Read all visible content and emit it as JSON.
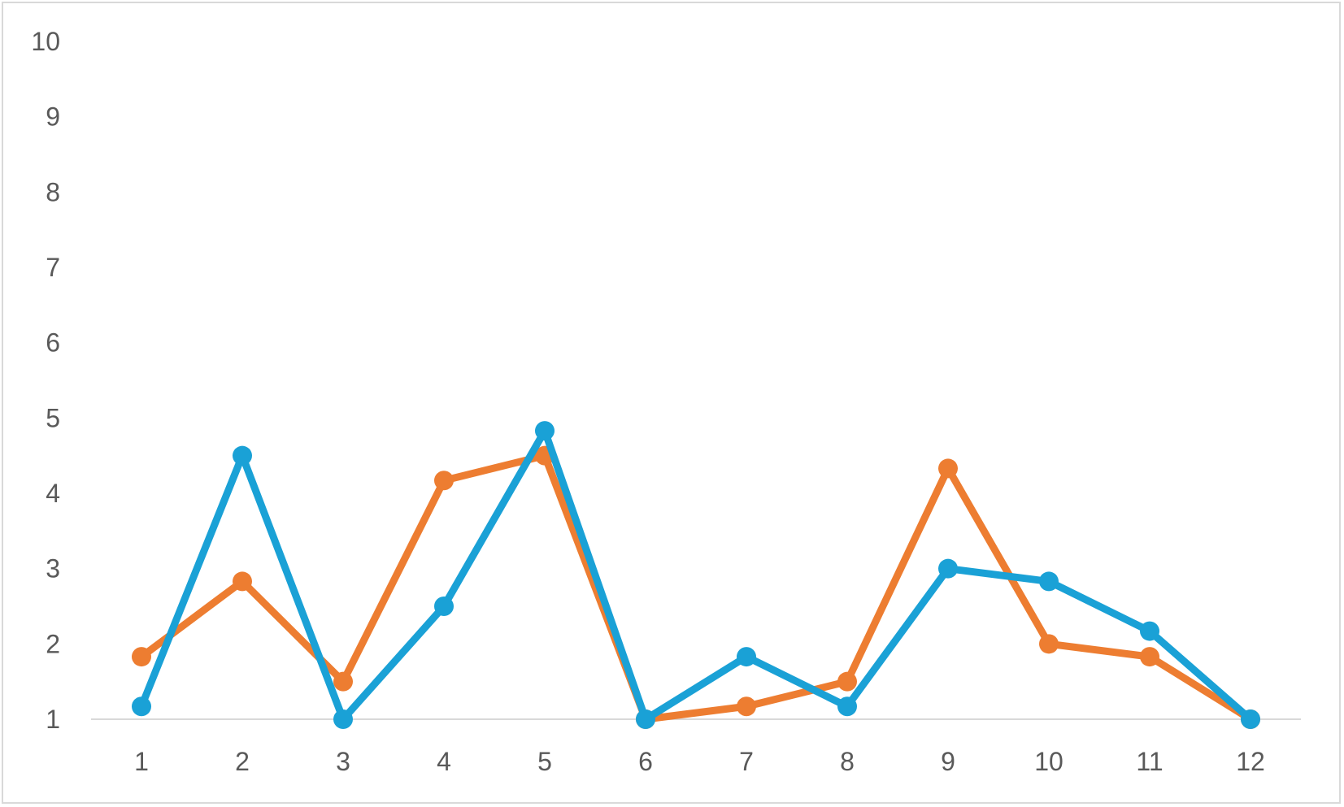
{
  "chart_data": {
    "type": "line",
    "title": "",
    "xlabel": "",
    "ylabel": "",
    "x": [
      1,
      2,
      3,
      4,
      5,
      6,
      7,
      8,
      9,
      10,
      11,
      12
    ],
    "x_tick_labels": [
      "1",
      "2",
      "3",
      "4",
      "5",
      "6",
      "7",
      "8",
      "9",
      "10",
      "11",
      "12"
    ],
    "y_tick_labels": [
      "1",
      "2",
      "3",
      "4",
      "5",
      "6",
      "7",
      "8",
      "9",
      "10"
    ],
    "ylim": [
      1,
      10
    ],
    "grid": false,
    "legend": "none",
    "series": [
      {
        "color": "#ED7D31",
        "values": [
          1.83,
          2.83,
          1.5,
          4.17,
          4.5,
          1.0,
          1.17,
          1.5,
          4.33,
          2.0,
          1.83,
          1.0
        ]
      },
      {
        "color": "#1AA1D6",
        "values": [
          1.17,
          4.5,
          1.0,
          2.5,
          4.83,
          1.0,
          1.83,
          1.17,
          3.0,
          2.83,
          2.17,
          1.0
        ]
      }
    ]
  }
}
